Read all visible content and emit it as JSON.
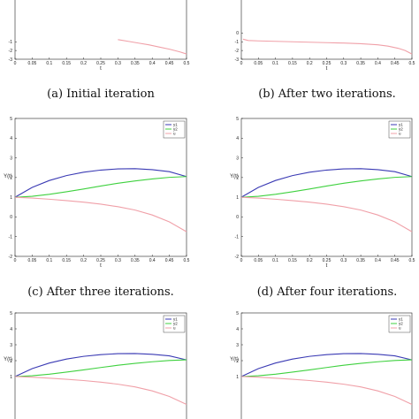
{
  "colors": {
    "y1": "#3a3ab4",
    "y2": "#3fd13f",
    "u": "#f0a0a8",
    "frame": "#222222",
    "text": "#111111"
  },
  "chart_data": [
    {
      "type": "line",
      "caption": "(a) Initial iteration",
      "xlabel": "t",
      "ylabel": "",
      "xlim": [
        0,
        0.5
      ],
      "ylim": [
        -3,
        5
      ],
      "xticks": [
        "0",
        "0.05",
        "0.1",
        "0.15",
        "0.2",
        "0.25",
        "0.3",
        "0.35",
        "0.4",
        "0.45",
        "0.5"
      ],
      "yticks": [
        "-3",
        "-2",
        "-1"
      ],
      "legend": [],
      "series": [
        {
          "key": "u",
          "x": [
            0.3,
            0.33,
            0.36,
            0.39,
            0.42,
            0.45,
            0.48,
            0.5
          ],
          "y": [
            -0.75,
            -0.95,
            -1.15,
            -1.35,
            -1.6,
            -1.85,
            -2.15,
            -2.4
          ]
        }
      ]
    },
    {
      "type": "line",
      "caption": "(b) After two iterations.",
      "xlabel": "t",
      "ylabel": "",
      "xlim": [
        0,
        0.5
      ],
      "ylim": [
        -3,
        5
      ],
      "xticks": [
        "0",
        "0.05",
        "0.1",
        "0.15",
        "0.2",
        "0.25",
        "0.3",
        "0.35",
        "0.4",
        "0.45",
        "0.5"
      ],
      "yticks": [
        "-3",
        "-2",
        "-1",
        "0"
      ],
      "legend": [],
      "series": [
        {
          "key": "u",
          "x": [
            0.005,
            0.02,
            0.05,
            0.1,
            0.15,
            0.2,
            0.25,
            0.3,
            0.35,
            0.4,
            0.43,
            0.46,
            0.48,
            0.5
          ],
          "y": [
            -0.7,
            -0.85,
            -0.9,
            -0.95,
            -1.0,
            -1.05,
            -1.1,
            -1.15,
            -1.22,
            -1.35,
            -1.5,
            -1.75,
            -2.0,
            -2.4
          ]
        }
      ]
    },
    {
      "type": "line",
      "caption": "(c) After three iterations.",
      "xlabel": "t",
      "ylabel": "Y(t)",
      "xlim": [
        0,
        0.5
      ],
      "ylim": [
        -2,
        5
      ],
      "xticks": [
        "0",
        "0.05",
        "0.1",
        "0.15",
        "0.2",
        "0.25",
        "0.3",
        "0.35",
        "0.4",
        "0.45",
        "0.5"
      ],
      "yticks": [
        "-2",
        "-1",
        "0",
        "1",
        "2",
        "3",
        "4",
        "5"
      ],
      "legend": [
        "y1",
        "y2",
        "u"
      ],
      "series": [
        {
          "key": "y1",
          "x": [
            0,
            0.05,
            0.1,
            0.15,
            0.2,
            0.25,
            0.3,
            0.35,
            0.4,
            0.45,
            0.5
          ],
          "y": [
            1.0,
            1.5,
            1.85,
            2.1,
            2.27,
            2.38,
            2.44,
            2.45,
            2.4,
            2.3,
            2.05
          ]
        },
        {
          "key": "y2",
          "x": [
            0,
            0.05,
            0.1,
            0.15,
            0.2,
            0.25,
            0.3,
            0.35,
            0.4,
            0.45,
            0.5
          ],
          "y": [
            1.0,
            1.05,
            1.15,
            1.28,
            1.42,
            1.57,
            1.71,
            1.83,
            1.93,
            2.01,
            2.05
          ]
        },
        {
          "key": "u",
          "x": [
            0,
            0.05,
            0.1,
            0.15,
            0.2,
            0.25,
            0.3,
            0.35,
            0.4,
            0.45,
            0.5
          ],
          "y": [
            1.0,
            0.96,
            0.9,
            0.83,
            0.75,
            0.65,
            0.52,
            0.35,
            0.1,
            -0.25,
            -0.75
          ]
        }
      ]
    },
    {
      "type": "line",
      "caption": "(d) After four iterations.",
      "xlabel": "t",
      "ylabel": "Y(t)",
      "xlim": [
        0,
        0.5
      ],
      "ylim": [
        -2,
        5
      ],
      "xticks": [
        "0",
        "0.05",
        "0.1",
        "0.15",
        "0.2",
        "0.25",
        "0.3",
        "0.35",
        "0.4",
        "0.45",
        "0.5"
      ],
      "yticks": [
        "-2",
        "-1",
        "0",
        "1",
        "2",
        "3",
        "4",
        "5"
      ],
      "legend": [
        "y1",
        "y2",
        "u"
      ],
      "series": [
        {
          "key": "y1",
          "x": [
            0,
            0.05,
            0.1,
            0.15,
            0.2,
            0.25,
            0.3,
            0.35,
            0.4,
            0.45,
            0.5
          ],
          "y": [
            1.0,
            1.5,
            1.85,
            2.1,
            2.27,
            2.38,
            2.44,
            2.45,
            2.4,
            2.3,
            2.05
          ]
        },
        {
          "key": "y2",
          "x": [
            0,
            0.05,
            0.1,
            0.15,
            0.2,
            0.25,
            0.3,
            0.35,
            0.4,
            0.45,
            0.5
          ],
          "y": [
            1.0,
            1.05,
            1.15,
            1.28,
            1.42,
            1.57,
            1.71,
            1.83,
            1.93,
            2.01,
            2.05
          ]
        },
        {
          "key": "u",
          "x": [
            0,
            0.05,
            0.1,
            0.15,
            0.2,
            0.25,
            0.3,
            0.35,
            0.4,
            0.45,
            0.5
          ],
          "y": [
            1.0,
            0.96,
            0.9,
            0.83,
            0.75,
            0.65,
            0.52,
            0.35,
            0.1,
            -0.25,
            -0.75
          ]
        }
      ]
    },
    {
      "type": "line",
      "caption": "",
      "xlabel": "",
      "ylabel": "Y(t)",
      "xlim": [
        0,
        0.5
      ],
      "ylim": [
        -2,
        5
      ],
      "xticks": [],
      "yticks": [
        "1",
        "2",
        "3",
        "4",
        "5"
      ],
      "legend": [
        "y1",
        "y2",
        "u"
      ],
      "series": [
        {
          "key": "y1",
          "x": [
            0,
            0.05,
            0.1,
            0.15,
            0.2,
            0.25,
            0.3,
            0.35,
            0.4,
            0.45,
            0.5
          ],
          "y": [
            1.0,
            1.5,
            1.85,
            2.1,
            2.27,
            2.38,
            2.44,
            2.45,
            2.4,
            2.3,
            2.05
          ]
        },
        {
          "key": "y2",
          "x": [
            0,
            0.05,
            0.1,
            0.15,
            0.2,
            0.25,
            0.3,
            0.35,
            0.4,
            0.45,
            0.5
          ],
          "y": [
            1.0,
            1.05,
            1.15,
            1.28,
            1.42,
            1.57,
            1.71,
            1.83,
            1.93,
            2.01,
            2.05
          ]
        },
        {
          "key": "u",
          "x": [
            0,
            0.05,
            0.1,
            0.15,
            0.2,
            0.25,
            0.3,
            0.35,
            0.4,
            0.45,
            0.5
          ],
          "y": [
            1.0,
            0.96,
            0.9,
            0.83,
            0.75,
            0.65,
            0.52,
            0.35,
            0.1,
            -0.25,
            -0.75
          ]
        }
      ]
    },
    {
      "type": "line",
      "caption": "",
      "xlabel": "",
      "ylabel": "Y(t)",
      "xlim": [
        0,
        0.5
      ],
      "ylim": [
        -2,
        5
      ],
      "xticks": [],
      "yticks": [
        "1",
        "2",
        "3",
        "4",
        "5"
      ],
      "legend": [
        "y1",
        "y2",
        "u"
      ],
      "series": [
        {
          "key": "y1",
          "x": [
            0,
            0.05,
            0.1,
            0.15,
            0.2,
            0.25,
            0.3,
            0.35,
            0.4,
            0.45,
            0.5
          ],
          "y": [
            1.0,
            1.5,
            1.85,
            2.1,
            2.27,
            2.38,
            2.44,
            2.45,
            2.4,
            2.3,
            2.05
          ]
        },
        {
          "key": "y2",
          "x": [
            0,
            0.05,
            0.1,
            0.15,
            0.2,
            0.25,
            0.3,
            0.35,
            0.4,
            0.45,
            0.5
          ],
          "y": [
            1.0,
            1.05,
            1.15,
            1.28,
            1.42,
            1.57,
            1.71,
            1.83,
            1.93,
            2.01,
            2.05
          ]
        },
        {
          "key": "u",
          "x": [
            0,
            0.05,
            0.1,
            0.15,
            0.2,
            0.25,
            0.3,
            0.35,
            0.4,
            0.45,
            0.5
          ],
          "y": [
            1.0,
            0.96,
            0.9,
            0.83,
            0.75,
            0.65,
            0.52,
            0.35,
            0.1,
            -0.25,
            -0.75
          ]
        }
      ]
    }
  ]
}
